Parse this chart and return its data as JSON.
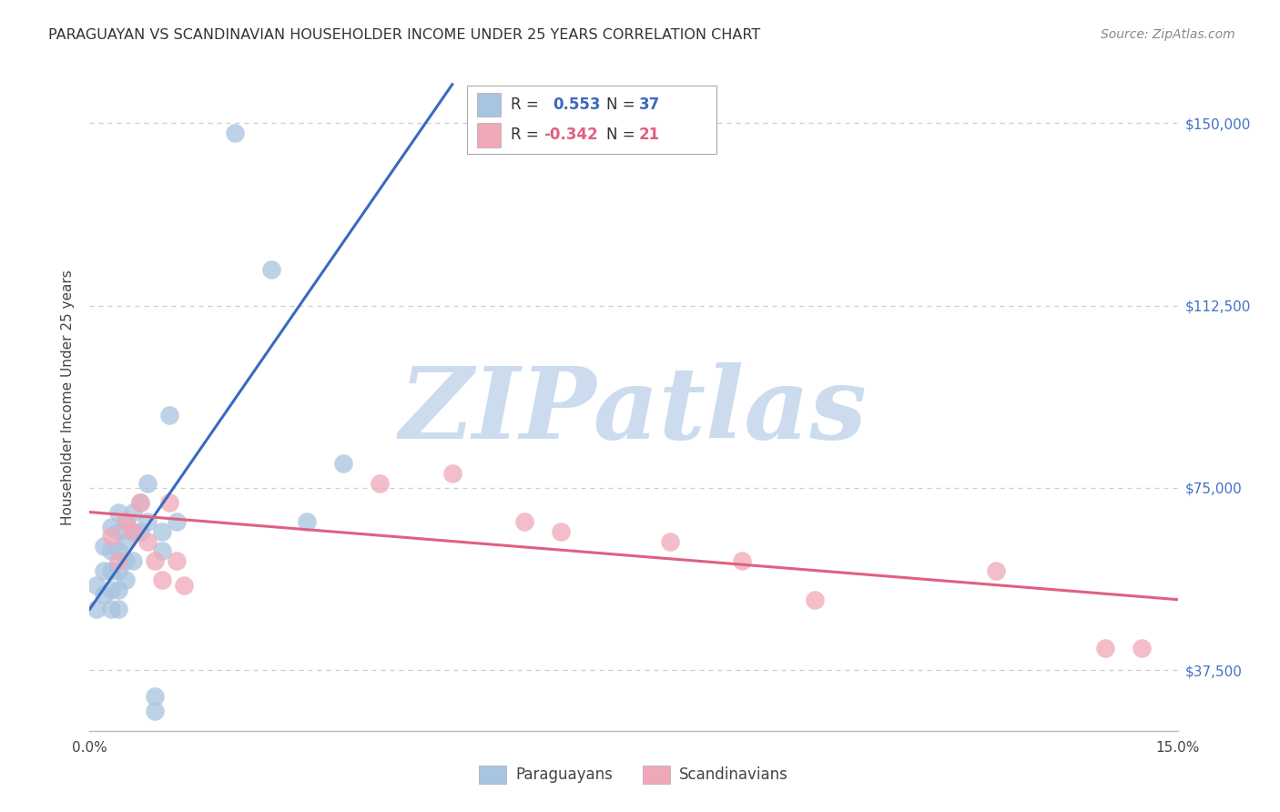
{
  "title": "PARAGUAYAN VS SCANDINAVIAN HOUSEHOLDER INCOME UNDER 25 YEARS CORRELATION CHART",
  "source": "Source: ZipAtlas.com",
  "ylabel": "Householder Income Under 25 years",
  "xlim": [
    0.0,
    0.15
  ],
  "ylim": [
    25000,
    162000
  ],
  "yticks": [
    37500,
    75000,
    112500,
    150000
  ],
  "ytick_labels": [
    "$37,500",
    "$75,000",
    "$112,500",
    "$150,000"
  ],
  "xticks": [
    0.0,
    0.015,
    0.03,
    0.045,
    0.06,
    0.075,
    0.09,
    0.105,
    0.12,
    0.135,
    0.15
  ],
  "xtick_labels": [
    "0.0%",
    "",
    "",
    "",
    "",
    "",
    "",
    "",
    "",
    "",
    "15.0%"
  ],
  "paraguayan_color": "#a8c4e0",
  "scandinavian_color": "#f0a8b8",
  "trendline_blue": "#3a6abf",
  "trendline_pink": "#e06080",
  "ytick_color": "#4472c4",
  "background_color": "#ffffff",
  "grid_color": "#cccccc",
  "paraguayan_R": "0.553",
  "paraguayan_N": "37",
  "scandinavian_R": "-0.342",
  "scandinavian_N": "21",
  "watermark": "ZIPatlas",
  "watermark_color": "#ccdcee",
  "paraguayan_x": [
    0.001,
    0.001,
    0.002,
    0.002,
    0.002,
    0.003,
    0.003,
    0.003,
    0.003,
    0.003,
    0.004,
    0.004,
    0.004,
    0.004,
    0.004,
    0.004,
    0.005,
    0.005,
    0.005,
    0.005,
    0.006,
    0.006,
    0.006,
    0.007,
    0.007,
    0.008,
    0.008,
    0.009,
    0.009,
    0.01,
    0.01,
    0.011,
    0.012,
    0.02,
    0.025,
    0.03,
    0.035
  ],
  "paraguayan_y": [
    55000,
    50000,
    63000,
    58000,
    53000,
    67000,
    62000,
    58000,
    54000,
    50000,
    70000,
    66000,
    62000,
    58000,
    54000,
    50000,
    68000,
    64000,
    60000,
    56000,
    70000,
    66000,
    60000,
    72000,
    66000,
    76000,
    68000,
    32000,
    29000,
    66000,
    62000,
    90000,
    68000,
    148000,
    120000,
    68000,
    80000
  ],
  "scandinavian_x": [
    0.003,
    0.004,
    0.005,
    0.006,
    0.007,
    0.008,
    0.009,
    0.01,
    0.011,
    0.012,
    0.013,
    0.04,
    0.05,
    0.06,
    0.065,
    0.08,
    0.09,
    0.1,
    0.125,
    0.14,
    0.145
  ],
  "scandinavian_y": [
    65000,
    60000,
    68000,
    66000,
    72000,
    64000,
    60000,
    56000,
    72000,
    60000,
    55000,
    76000,
    78000,
    68000,
    66000,
    64000,
    60000,
    52000,
    58000,
    42000,
    42000
  ],
  "blue_trend_x0": 0.0,
  "blue_trend_y0": 50000,
  "blue_trend_x1": 0.05,
  "blue_trend_y1": 158000,
  "pink_trend_x0": 0.0,
  "pink_trend_y0": 70000,
  "pink_trend_x1": 0.15,
  "pink_trend_y1": 52000
}
